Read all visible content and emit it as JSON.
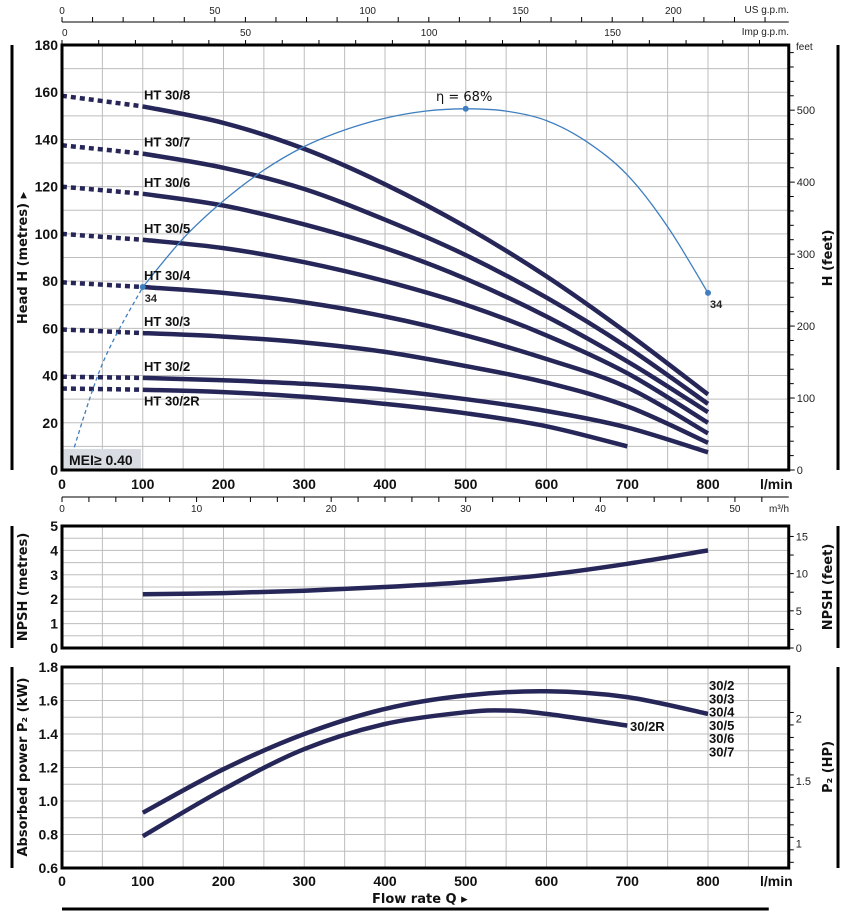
{
  "colors": {
    "curve": "#262659",
    "efficiency": "#3f7fc0",
    "grid": "#bdbdbd",
    "axis": "#000000",
    "mei_box": "#d9dde3"
  },
  "chart_data": [
    {
      "id": "head",
      "type": "line",
      "title": "",
      "xlabel": "l/min",
      "ylabel": "Head H (metres) ▸",
      "ylabel_right": "H (feet)",
      "xlim": [
        0,
        900
      ],
      "ylim": [
        0,
        180
      ],
      "grid": true,
      "x_ticks": [
        0,
        100,
        200,
        300,
        400,
        500,
        600,
        700,
        800
      ],
      "x_tick_labels": [
        "0",
        "100",
        "200",
        "300",
        "400",
        "500",
        "600",
        "700",
        "800"
      ],
      "x_unit_label": "l/min",
      "y_ticks": [
        0,
        20,
        40,
        60,
        80,
        100,
        120,
        140,
        160,
        180
      ],
      "y_tick_labels": [
        "0",
        "20",
        "40",
        "60",
        "80",
        "100",
        "120",
        "140",
        "160",
        "180"
      ],
      "y_right_unit": "feet",
      "y_right_ticks": [
        0,
        100,
        200,
        300,
        400,
        500
      ],
      "y_right_tick_labels": [
        "0",
        "100",
        "200",
        "300",
        "400",
        "500"
      ],
      "top_axis_us": {
        "unit": "US g.p.m.",
        "ticks": [
          0,
          50,
          100,
          150,
          200
        ],
        "labels": [
          "0",
          "50",
          "100",
          "150",
          "200"
        ]
      },
      "top_axis_imp": {
        "unit": "Imp g.p.m.",
        "ticks": [
          0,
          50,
          100,
          150
        ],
        "labels": [
          "0",
          "50",
          "100",
          "150"
        ]
      },
      "x_dashed_until": 100,
      "series": [
        {
          "name": "HT 30/8",
          "x": [
            0,
            100,
            200,
            300,
            400,
            500,
            600,
            700,
            800
          ],
          "y": [
            158.5,
            154,
            147,
            136,
            121,
            103,
            82,
            58,
            32
          ]
        },
        {
          "name": "HT 30/7",
          "x": [
            0,
            100,
            200,
            300,
            400,
            500,
            600,
            700,
            800
          ],
          "y": [
            137.5,
            134,
            128,
            119,
            106,
            91,
            73,
            52,
            28
          ]
        },
        {
          "name": "HT 30/6",
          "x": [
            0,
            100,
            200,
            300,
            400,
            500,
            600,
            700,
            800
          ],
          "y": [
            120,
            117,
            112,
            104,
            94,
            81,
            65,
            46,
            24.5
          ]
        },
        {
          "name": "HT 30/5",
          "x": [
            0,
            100,
            200,
            300,
            400,
            500,
            600,
            700,
            800
          ],
          "y": [
            100,
            97.5,
            94,
            88,
            80,
            70,
            57,
            41,
            20
          ]
        },
        {
          "name": "HT 30/4",
          "x": [
            0,
            100,
            200,
            300,
            400,
            500,
            600,
            700,
            800
          ],
          "y": [
            79.5,
            77.5,
            75,
            71,
            65,
            57,
            47,
            35,
            15.5
          ]
        },
        {
          "name": "HT 30/3",
          "x": [
            0,
            100,
            200,
            300,
            400,
            500,
            600,
            700,
            800
          ],
          "y": [
            59.5,
            58,
            56.5,
            54,
            50,
            44,
            37,
            27,
            11.5
          ]
        },
        {
          "name": "HT 30/2",
          "x": [
            0,
            100,
            200,
            300,
            400,
            500,
            600,
            700,
            800
          ],
          "y": [
            39.5,
            39,
            38,
            36.5,
            34,
            30,
            25,
            18,
            7.5
          ]
        },
        {
          "name": "HT 30/2R",
          "x": [
            0,
            100,
            200,
            300,
            400,
            500,
            600,
            700
          ],
          "y": [
            34.5,
            34,
            33,
            31,
            28,
            24,
            18.5,
            10
          ]
        }
      ],
      "label_positions": [
        {
          "name": "HT 30/8",
          "anchor_y": 154,
          "side": "above"
        },
        {
          "name": "HT 30/7",
          "anchor_y": 134,
          "side": "above"
        },
        {
          "name": "HT 30/6",
          "anchor_y": 117,
          "side": "above"
        },
        {
          "name": "HT 30/5",
          "anchor_y": 97.5,
          "side": "above"
        },
        {
          "name": "HT 30/4",
          "anchor_y": 77.5,
          "side": "above"
        },
        {
          "name": "HT 30/3",
          "anchor_y": 58,
          "side": "above"
        },
        {
          "name": "HT 30/2",
          "anchor_y": 39,
          "side": "above"
        },
        {
          "name": "HT 30/2R",
          "anchor_y": 34,
          "side": "below"
        }
      ],
      "efficiency_curve": {
        "label": "η = 68%",
        "x": [
          10,
          50,
          100,
          150,
          200,
          250,
          300,
          350,
          400,
          450,
          500,
          550,
          600,
          650,
          700,
          750,
          800
        ],
        "y": [
          4,
          45,
          77.5,
          98,
          114,
          127,
          137,
          144,
          149,
          152,
          153,
          152,
          148,
          139,
          125,
          103,
          75
        ],
        "dashed_until": 100,
        "points": [
          {
            "x": 100,
            "y": 77.5,
            "label": "34"
          },
          {
            "x": 500,
            "y": 153,
            "label": ""
          },
          {
            "x": 800,
            "y": 75,
            "label": "34"
          }
        ]
      },
      "annotations": [
        "MEI≥ 0.40"
      ]
    },
    {
      "id": "npsh",
      "type": "line",
      "ylabel": "NPSH (metres)",
      "ylabel_right": "NPSH (feet)",
      "xlim": [
        0,
        900
      ],
      "ylim": [
        0,
        5
      ],
      "grid": true,
      "top_axis_m3h": {
        "unit": "m³/h",
        "ticks": [
          0,
          10,
          20,
          30,
          40,
          50
        ],
        "labels": [
          "0",
          "10",
          "20",
          "30",
          "40",
          "50"
        ]
      },
      "y_ticks": [
        0,
        1,
        2,
        3,
        4,
        5
      ],
      "y_tick_labels": [
        "0",
        "1",
        "2",
        "3",
        "4",
        "5"
      ],
      "y_right_ticks": [
        0,
        5,
        10,
        15
      ],
      "y_right_tick_labels": [
        "0",
        "5",
        "10",
        "15"
      ],
      "series": [
        {
          "name": "NPSH",
          "x": [
            100,
            200,
            300,
            400,
            500,
            600,
            700,
            800
          ],
          "y": [
            2.2,
            2.25,
            2.35,
            2.5,
            2.7,
            3.0,
            3.45,
            4.0
          ]
        }
      ]
    },
    {
      "id": "power",
      "type": "line",
      "ylabel": "Absorbed power P₂ (kW)",
      "ylabel_right": "P₂ (HP)",
      "xlabel": "Flow rate Q ▸",
      "x_unit_label": "l/min",
      "xlim": [
        0,
        900
      ],
      "ylim": [
        0.6,
        1.8
      ],
      "grid": true,
      "x_ticks": [
        0,
        100,
        200,
        300,
        400,
        500,
        600,
        700,
        800
      ],
      "x_tick_labels": [
        "0",
        "100",
        "200",
        "300",
        "400",
        "500",
        "600",
        "700",
        "800"
      ],
      "y_ticks": [
        0.6,
        0.8,
        1.0,
        1.2,
        1.4,
        1.6,
        1.8
      ],
      "y_tick_labels": [
        "0.6",
        "0.8",
        "1.0",
        "1.2",
        "1.4",
        "1.6",
        "1.8"
      ],
      "y_right_ticks": [
        1,
        1.5,
        2
      ],
      "y_right_tick_labels": [
        "1",
        "1.5",
        "2"
      ],
      "series": [
        {
          "name": "30/2 – 30/7",
          "labels": [
            "30/2",
            "30/3",
            "30/4",
            "30/5",
            "30/6",
            "30/7"
          ],
          "x": [
            100,
            200,
            300,
            400,
            500,
            600,
            700,
            800
          ],
          "y": [
            0.93,
            1.19,
            1.4,
            1.55,
            1.63,
            1.655,
            1.62,
            1.52
          ]
        },
        {
          "name": "30/2R",
          "labels": [
            "30/2R"
          ],
          "x": [
            100,
            200,
            300,
            400,
            500,
            550,
            600,
            700
          ],
          "y": [
            0.79,
            1.07,
            1.31,
            1.46,
            1.53,
            1.54,
            1.52,
            1.45
          ]
        }
      ]
    }
  ]
}
